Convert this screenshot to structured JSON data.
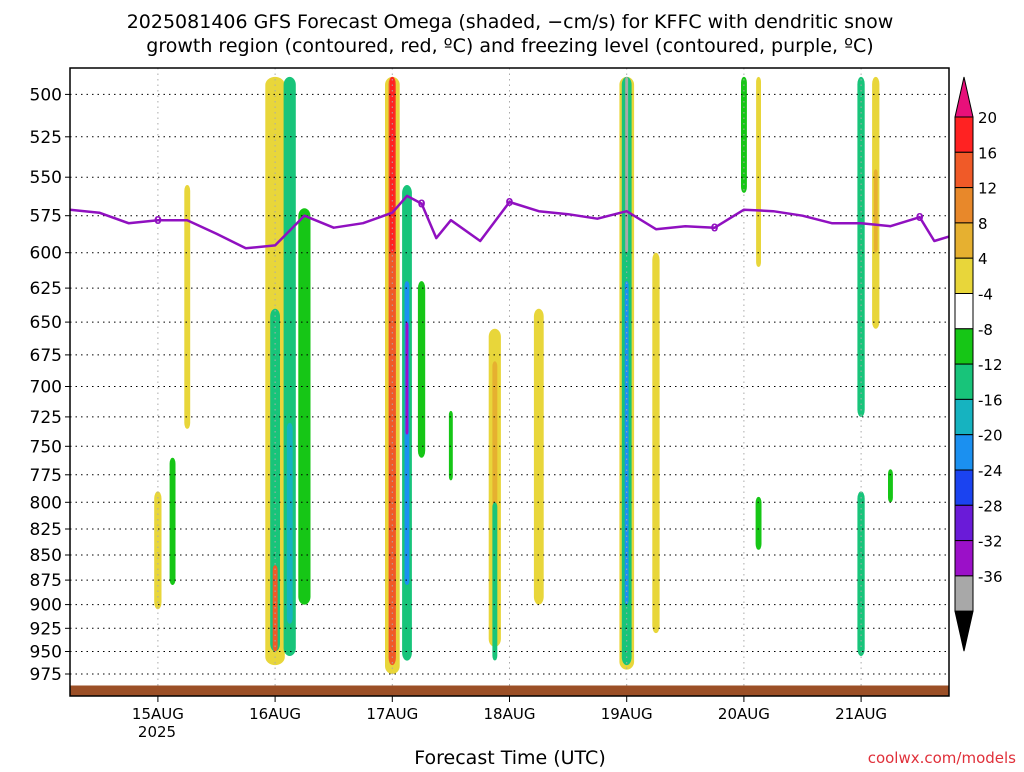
{
  "chart_data": {
    "type": "heatmap",
    "title": "2025081406 GFS Forecast Omega (shaded, −cm/s) for KFFC with dendritic snow",
    "subtitle": "growth region (contoured, red, ºC) and freezing level (contoured, purple, ºC)",
    "xlabel": "Forecast Time (UTC)",
    "ylabel": "",
    "credit": "coolwx.com/models",
    "x_ticks": [
      "15AUG",
      "16AUG",
      "17AUG",
      "18AUG",
      "19AUG",
      "20AUG",
      "21AUG"
    ],
    "x_tick_sublabel": "2025",
    "x_range": [
      "2025-08-14 06",
      "2025-08-21 18"
    ],
    "y_ticks": [
      500,
      525,
      550,
      575,
      600,
      625,
      650,
      675,
      700,
      725,
      750,
      775,
      800,
      825,
      850,
      875,
      900,
      925,
      950,
      975
    ],
    "y_range": [
      1000,
      485
    ],
    "y_scale": "pressure (hPa), log",
    "grid": "dotted",
    "colorbar": {
      "labels": [
        "20",
        "16",
        "12",
        "8",
        "4",
        "-4",
        "-8",
        "-12",
        "-16",
        "-20",
        "-24",
        "-28",
        "-32",
        "-36"
      ],
      "colors": [
        "#ff2222",
        "#f05a28",
        "#e8882a",
        "#e6b030",
        "#e8d63a",
        "#ffffff",
        "#16c616",
        "#18c47a",
        "#16b3c0",
        "#1b90f0",
        "#1b43f0",
        "#6a1bd8",
        "#9b10c8",
        "#a8a8a8"
      ],
      "top_arrow_color": "#e8107a",
      "bottom_arrow_color": "#000000"
    },
    "freezing_level_color": "#9010c0",
    "freezing_level_label": "0",
    "freezing_level": [
      {
        "t": "2025-08-14 06",
        "p": 571
      },
      {
        "t": "2025-08-14 12",
        "p": 573
      },
      {
        "t": "2025-08-14 18",
        "p": 580
      },
      {
        "t": "2025-08-15 00",
        "p": 578
      },
      {
        "t": "2025-08-15 06",
        "p": 578
      },
      {
        "t": "2025-08-15 12",
        "p": 587
      },
      {
        "t": "2025-08-15 18",
        "p": 597
      },
      {
        "t": "2025-08-16 00",
        "p": 595
      },
      {
        "t": "2025-08-16 06",
        "p": 575
      },
      {
        "t": "2025-08-16 12",
        "p": 583
      },
      {
        "t": "2025-08-16 18",
        "p": 580
      },
      {
        "t": "2025-08-17 00",
        "p": 573
      },
      {
        "t": "2025-08-17 03",
        "p": 562
      },
      {
        "t": "2025-08-17 06",
        "p": 567
      },
      {
        "t": "2025-08-17 09",
        "p": 590
      },
      {
        "t": "2025-08-17 12",
        "p": 578
      },
      {
        "t": "2025-08-17 18",
        "p": 592
      },
      {
        "t": "2025-08-18 00",
        "p": 566
      },
      {
        "t": "2025-08-18 06",
        "p": 572
      },
      {
        "t": "2025-08-18 12",
        "p": 574
      },
      {
        "t": "2025-08-18 18",
        "p": 577
      },
      {
        "t": "2025-08-19 00",
        "p": 572
      },
      {
        "t": "2025-08-19 06",
        "p": 584
      },
      {
        "t": "2025-08-19 12",
        "p": 582
      },
      {
        "t": "2025-08-19 18",
        "p": 583
      },
      {
        "t": "2025-08-20 00",
        "p": 571
      },
      {
        "t": "2025-08-20 06",
        "p": 572
      },
      {
        "t": "2025-08-20 12",
        "p": 575
      },
      {
        "t": "2025-08-20 18",
        "p": 580
      },
      {
        "t": "2025-08-21 00",
        "p": 580
      },
      {
        "t": "2025-08-21 06",
        "p": 582
      },
      {
        "t": "2025-08-21 12",
        "p": 576
      },
      {
        "t": "2025-08-21 15",
        "p": 592
      },
      {
        "t": "2025-08-21 18",
        "p": 589
      }
    ],
    "omega_regions": [
      {
        "t": "2025-08-15 00",
        "p_top": 790,
        "p_bottom": 905,
        "width_h": 1.5,
        "value": 6
      },
      {
        "t": "2025-08-15 03",
        "p_top": 760,
        "p_bottom": 880,
        "width_h": 1.2,
        "value": -6
      },
      {
        "t": "2025-08-15 06",
        "p_top": 555,
        "p_bottom": 735,
        "width_h": 1.2,
        "value": 6
      },
      {
        "t": "2025-08-16 00",
        "p_top": 490,
        "p_bottom": 965,
        "width_h": 4,
        "value": 6
      },
      {
        "t": "2025-08-16 00",
        "p_top": 640,
        "p_bottom": 950,
        "width_h": 2,
        "value": -10
      },
      {
        "t": "2025-08-16 00",
        "p_top": 860,
        "p_bottom": 950,
        "width_h": 1,
        "value": 14
      },
      {
        "t": "2025-08-16 03",
        "p_top": 490,
        "p_bottom": 955,
        "width_h": 2.5,
        "value": -10
      },
      {
        "t": "2025-08-16 03",
        "p_top": 730,
        "p_bottom": 920,
        "width_h": 1.2,
        "value": -14
      },
      {
        "t": "2025-08-16 06",
        "p_top": 570,
        "p_bottom": 900,
        "width_h": 2.5,
        "value": -6
      },
      {
        "t": "2025-08-17 00",
        "p_top": 490,
        "p_bottom": 975,
        "width_h": 3,
        "value": 6
      },
      {
        "t": "2025-08-17 00",
        "p_top": 490,
        "p_bottom": 965,
        "width_h": 1.5,
        "value": 14
      },
      {
        "t": "2025-08-17 00",
        "p_top": 490,
        "p_bottom": 600,
        "width_h": 1,
        "value": 18
      },
      {
        "t": "2025-08-17 03",
        "p_top": 555,
        "p_bottom": 960,
        "width_h": 2,
        "value": -10
      },
      {
        "t": "2025-08-17 03",
        "p_top": 620,
        "p_bottom": 880,
        "width_h": 1,
        "value": -18
      },
      {
        "t": "2025-08-17 03",
        "p_top": 650,
        "p_bottom": 740,
        "width_h": 0.6,
        "value": -30
      },
      {
        "t": "2025-08-17 06",
        "p_top": 620,
        "p_bottom": 760,
        "width_h": 1.5,
        "value": -6
      },
      {
        "t": "2025-08-17 12",
        "p_top": 720,
        "p_bottom": 780,
        "width_h": 0.8,
        "value": -6
      },
      {
        "t": "2025-08-17 21",
        "p_top": 655,
        "p_bottom": 945,
        "width_h": 2.5,
        "value": 6
      },
      {
        "t": "2025-08-17 21",
        "p_top": 680,
        "p_bottom": 850,
        "width_h": 1,
        "value": 10
      },
      {
        "t": "2025-08-17 21",
        "p_top": 800,
        "p_bottom": 960,
        "width_h": 1,
        "value": -10
      },
      {
        "t": "2025-08-18 06",
        "p_top": 640,
        "p_bottom": 900,
        "width_h": 2,
        "value": 6
      },
      {
        "t": "2025-08-19 00",
        "p_top": 490,
        "p_bottom": 970,
        "width_h": 3,
        "value": 6
      },
      {
        "t": "2025-08-19 00",
        "p_top": 490,
        "p_bottom": 965,
        "width_h": 2,
        "value": -10
      },
      {
        "t": "2025-08-19 00",
        "p_top": 490,
        "p_bottom": 600,
        "width_h": 0.6,
        "value": -34
      },
      {
        "t": "2025-08-19 00",
        "p_top": 620,
        "p_bottom": 900,
        "width_h": 0.8,
        "value": -18
      },
      {
        "t": "2025-08-19 06",
        "p_top": 600,
        "p_bottom": 930,
        "width_h": 1.5,
        "value": 6
      },
      {
        "t": "2025-08-20 00",
        "p_top": 490,
        "p_bottom": 560,
        "width_h": 1.2,
        "value": -6
      },
      {
        "t": "2025-08-20 03",
        "p_top": 490,
        "p_bottom": 610,
        "width_h": 1,
        "value": 6
      },
      {
        "t": "2025-08-20 03",
        "p_top": 795,
        "p_bottom": 845,
        "width_h": 1.2,
        "value": -6
      },
      {
        "t": "2025-08-21 00",
        "p_top": 490,
        "p_bottom": 725,
        "width_h": 1.5,
        "value": -10
      },
      {
        "t": "2025-08-21 00",
        "p_top": 790,
        "p_bottom": 955,
        "width_h": 1.5,
        "value": -10
      },
      {
        "t": "2025-08-21 03",
        "p_top": 490,
        "p_bottom": 655,
        "width_h": 1.5,
        "value": 6
      },
      {
        "t": "2025-08-21 03",
        "p_top": 545,
        "p_bottom": 600,
        "width_h": 0.8,
        "value": 10
      },
      {
        "t": "2025-08-21 06",
        "p_top": 770,
        "p_bottom": 800,
        "width_h": 1,
        "value": -6
      }
    ],
    "terrain_color": "#9b4f26",
    "terrain_surface_p": 988
  }
}
